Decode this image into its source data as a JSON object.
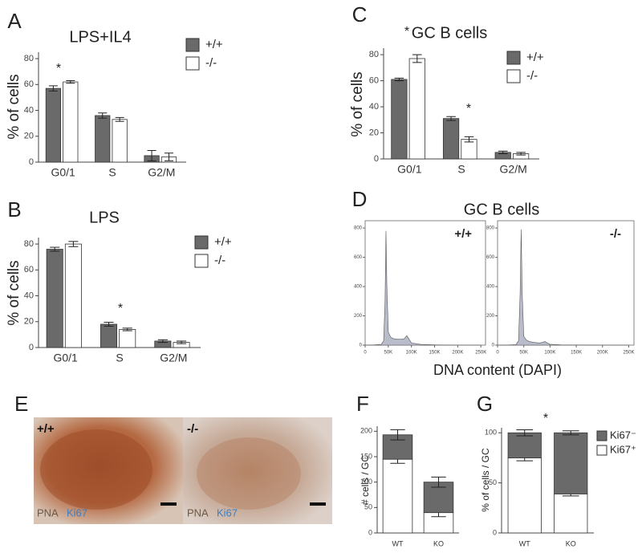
{
  "chart_data": [
    {
      "type": "bar",
      "panel": "A",
      "title": "LPS+IL4",
      "ylabel": "% of cells",
      "categories": [
        "G0/1",
        "S",
        "G2/M"
      ],
      "series": [
        {
          "name": "+/+",
          "color": "#6a6a6a",
          "values": [
            57,
            36,
            5
          ],
          "errors": [
            2,
            2,
            4
          ]
        },
        {
          "name": "-/-",
          "color": "#ffffff",
          "values": [
            62,
            33,
            4
          ],
          "errors": [
            1,
            1.5,
            3
          ]
        }
      ],
      "ylim": [
        0,
        85
      ],
      "yticks": [
        0,
        20,
        40,
        60,
        80
      ],
      "annotations": [
        "*"
      ]
    },
    {
      "type": "bar",
      "panel": "B",
      "title": "LPS",
      "ylabel": "% of cells",
      "categories": [
        "G0/1",
        "S",
        "G2/M"
      ],
      "series": [
        {
          "name": "+/+",
          "color": "#6a6a6a",
          "values": [
            76,
            18,
            5
          ],
          "errors": [
            1.5,
            1.5,
            1
          ]
        },
        {
          "name": "-/-",
          "color": "#ffffff",
          "values": [
            80,
            14,
            4
          ],
          "errors": [
            2,
            1,
            1
          ]
        }
      ],
      "ylim": [
        0,
        85
      ],
      "yticks": [
        0,
        20,
        40,
        60,
        80
      ],
      "annotations": [
        "*"
      ]
    },
    {
      "type": "bar",
      "panel": "C",
      "title": "GC B cells",
      "ylabel": "% of cells",
      "categories": [
        "G0/1",
        "S",
        "G2/M"
      ],
      "series": [
        {
          "name": "+/+",
          "color": "#6a6a6a",
          "values": [
            61,
            31,
            5
          ],
          "errors": [
            1,
            1.5,
            1
          ]
        },
        {
          "name": "-/-",
          "color": "#ffffff",
          "values": [
            77,
            15,
            4
          ],
          "errors": [
            3,
            2,
            1
          ]
        }
      ],
      "ylim": [
        0,
        85
      ],
      "yticks": [
        0,
        20,
        40,
        60,
        80
      ],
      "annotations": [
        "*",
        "*"
      ]
    },
    {
      "type": "area",
      "panel": "D",
      "title": "GC B cells",
      "xlabel": "DNA content (DAPI)",
      "x": [
        0,
        20000,
        35000,
        40000,
        43000,
        45000,
        47000,
        50000,
        55000,
        60000,
        70000,
        80000,
        85000,
        90000,
        95000,
        100000,
        120000,
        150000,
        200000,
        250000
      ],
      "series": [
        {
          "name": "+/+",
          "color": "#b9bccb",
          "values": [
            0,
            2,
            5,
            30,
            300,
            780,
            400,
            90,
            55,
            45,
            40,
            40,
            45,
            65,
            40,
            15,
            5,
            2,
            0,
            0
          ]
        },
        {
          "name": "-/-",
          "color": "#b9bccb",
          "values": [
            0,
            1,
            3,
            30,
            350,
            790,
            350,
            60,
            35,
            25,
            18,
            15,
            18,
            25,
            15,
            6,
            2,
            1,
            0,
            0
          ]
        }
      ],
      "xlim": [
        0,
        260000
      ],
      "xticks": [
        0,
        {
          "value": 50000,
          "label": "50K"
        },
        {
          "value": 100000,
          "label": "100K"
        },
        {
          "value": 150000,
          "label": "150K"
        },
        {
          "value": 200000,
          "label": "200K"
        },
        {
          "value": 250000,
          "label": "250K"
        }
      ],
      "ylim": [
        0,
        850
      ],
      "yticks": [
        0,
        200,
        400,
        600,
        800
      ]
    },
    {
      "type": "stacked_bar",
      "panel": "F",
      "ylabel": "# cells / GC",
      "categories": [
        "WT",
        "KO"
      ],
      "series": [
        {
          "color": "#6a6a6a",
          "values": [
            48,
            60
          ],
          "errors": [
            10,
            10
          ]
        },
        {
          "color": "#ffffff",
          "values": [
            145,
            40
          ],
          "errors": [
            8,
            8
          ]
        }
      ],
      "ylim": [
        0,
        210
      ],
      "yticks": [
        0,
        50,
        100,
        150,
        200
      ]
    },
    {
      "type": "stacked_bar",
      "panel": "G",
      "ylabel": "% of cells / GC",
      "categories": [
        "WT",
        "KO"
      ],
      "series": [
        {
          "name": "Ki67⁻",
          "color": "#6a6a6a",
          "values": [
            25,
            61
          ],
          "errors": [
            3,
            2
          ]
        },
        {
          "name": "Ki67⁺",
          "color": "#ffffff",
          "values": [
            75,
            39
          ],
          "errors": [
            3,
            2
          ]
        }
      ],
      "ylim": [
        0,
        105
      ],
      "yticks": [
        0,
        50,
        100
      ],
      "annotations": [
        "*"
      ]
    }
  ],
  "image_panel": {
    "panel": "E",
    "left_label": "+/+",
    "right_label": "-/-",
    "stain_labels": [
      "PNA",
      "Ki67"
    ]
  }
}
